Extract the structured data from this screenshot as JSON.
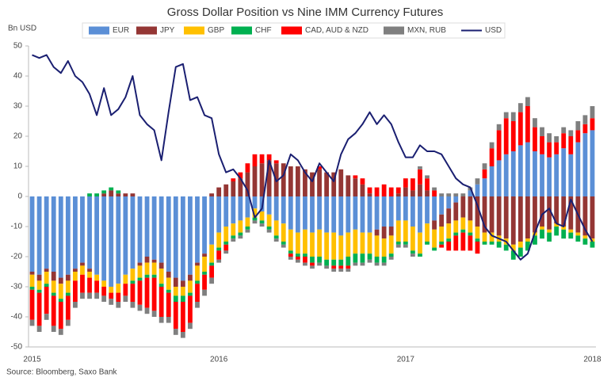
{
  "chart_data": {
    "type": "bar",
    "stacked": true,
    "title": "Gross Dollar Position vs Nine IMM Currency Futures",
    "y_label": "Bn USD",
    "source": "Source: Bloomberg, Saxo Bank",
    "categories": [
      "2015",
      null,
      null,
      null,
      null,
      null,
      null,
      null,
      null,
      null,
      null,
      null,
      null,
      null,
      null,
      null,
      null,
      null,
      null,
      null,
      null,
      null,
      null,
      null,
      null,
      null,
      "2016",
      null,
      null,
      null,
      null,
      null,
      null,
      null,
      null,
      null,
      null,
      null,
      null,
      null,
      null,
      null,
      null,
      null,
      null,
      null,
      null,
      null,
      null,
      null,
      null,
      null,
      "2017",
      null,
      null,
      null,
      null,
      null,
      null,
      null,
      null,
      null,
      null,
      null,
      null,
      null,
      null,
      null,
      null,
      null,
      null,
      null,
      null,
      null,
      null,
      null,
      null,
      null,
      "2018"
    ],
    "ylim": [
      -50,
      50
    ],
    "yticks": [
      -50,
      -40,
      -30,
      -20,
      -10,
      0,
      10,
      20,
      30,
      40,
      50
    ],
    "grid": false,
    "legend": "top",
    "series": [
      {
        "name": "EUR",
        "color": "#5b8fd6",
        "values": [
          -25,
          -26,
          -24,
          -25,
          -27,
          -26,
          -24,
          -22,
          -24,
          -26,
          -28,
          -30,
          -29,
          -26,
          -24,
          -22,
          -20,
          -21,
          -22,
          -25,
          -27,
          -28,
          -26,
          -22,
          -19,
          -16,
          -12,
          -10,
          -9,
          -8,
          -7,
          -4,
          -5,
          -6,
          -8,
          -9,
          -11,
          -12,
          -11,
          -12,
          -11,
          -12,
          -12,
          -13,
          -12,
          -11,
          -12,
          -12,
          -11,
          -10,
          -10,
          -8,
          -8,
          -10,
          -12,
          -9,
          -8,
          -6,
          -4,
          -2,
          0,
          2,
          4,
          6,
          10,
          12,
          14,
          15,
          17,
          18,
          15,
          14,
          13,
          14,
          16,
          14,
          18,
          21,
          22
        ]
      },
      {
        "name": "JPY",
        "color": "#943634",
        "values": [
          -1,
          -2,
          -1,
          -3,
          -2,
          -2,
          -1,
          -1,
          -1,
          0,
          1,
          2,
          1,
          1,
          1,
          -1,
          -2,
          -1,
          -2,
          -2,
          -3,
          -2,
          -2,
          -1,
          -1,
          1,
          3,
          4,
          5,
          6,
          8,
          10,
          11,
          12,
          11,
          11,
          10,
          10,
          9,
          8,
          9,
          8,
          8,
          9,
          7,
          6,
          4,
          1,
          -2,
          -4,
          -3,
          1,
          3,
          2,
          4,
          2,
          -3,
          -4,
          -5,
          -6,
          -7,
          -8,
          -10,
          -12,
          -12,
          -13,
          -14,
          -16,
          -15,
          -14,
          -12,
          -10,
          -11,
          -9,
          -10,
          -11,
          -12,
          -13,
          -14
        ]
      },
      {
        "name": "GBP",
        "color": "#ffc000",
        "values": [
          -4,
          -3,
          -4,
          -4,
          -5,
          -4,
          -3,
          -3,
          -2,
          -2,
          -2,
          -2,
          -3,
          -3,
          -4,
          -4,
          -4,
          -4,
          -5,
          -4,
          -3,
          -3,
          -4,
          -5,
          -5,
          -6,
          -5,
          -5,
          -4,
          -4,
          -3,
          -3,
          -3,
          -4,
          -5,
          -6,
          -7,
          -7,
          -8,
          -8,
          -9,
          -9,
          -9,
          -8,
          -8,
          -8,
          -7,
          -7,
          -7,
          -6,
          -6,
          -7,
          -7,
          -8,
          -7,
          -6,
          -6,
          -5,
          -5,
          -4,
          -4,
          -4,
          -4,
          -3,
          -3,
          -2,
          -2,
          -2,
          -2,
          -1,
          -1,
          -1,
          -1,
          -1,
          -1,
          -1,
          -1,
          -1,
          -1
        ]
      },
      {
        "name": "CHF",
        "color": "#00b050",
        "values": [
          -1,
          -1,
          -1,
          -1,
          -1,
          -1,
          0,
          0,
          1,
          1,
          1,
          1,
          1,
          0,
          -1,
          -1,
          -1,
          -1,
          -1,
          -1,
          -2,
          -2,
          -1,
          -1,
          -1,
          -1,
          -1,
          -1,
          -1,
          -1,
          -1,
          -1,
          -1,
          -1,
          -1,
          -1,
          -1,
          -1,
          -1,
          -2,
          -2,
          -2,
          -2,
          -2,
          -3,
          -3,
          -3,
          -2,
          -2,
          -2,
          -1,
          -1,
          -1,
          -1,
          -1,
          -1,
          -1,
          -1,
          -1,
          -1,
          -1,
          -1,
          -1,
          -1,
          -1,
          -2,
          -2,
          -3,
          -3,
          -3,
          -3,
          -3,
          -3,
          -3,
          -3,
          -2,
          -2,
          -2,
          -2
        ]
      },
      {
        "name": "CAD, AUD & NZD",
        "color": "#ff0000",
        "values": [
          -10,
          -11,
          -9,
          -10,
          -9,
          -8,
          -7,
          -6,
          -5,
          -4,
          -3,
          -2,
          -3,
          -4,
          -6,
          -8,
          -10,
          -11,
          -10,
          -8,
          -9,
          -10,
          -9,
          -6,
          -5,
          -4,
          -3,
          -2,
          1,
          2,
          3,
          4,
          3,
          2,
          1,
          0,
          -1,
          -1,
          -2,
          -1,
          1,
          0,
          -1,
          -1,
          -1,
          1,
          2,
          2,
          3,
          4,
          3,
          2,
          3,
          4,
          5,
          4,
          2,
          -1,
          -3,
          -5,
          -6,
          -5,
          -4,
          3,
          6,
          10,
          12,
          10,
          11,
          12,
          8,
          6,
          5,
          4,
          5,
          6,
          4,
          3,
          4
        ]
      },
      {
        "name": "MXN, RUB",
        "color": "#7f7f7f",
        "values": [
          -2,
          -2,
          -2,
          -2,
          -2,
          -2,
          -2,
          -2,
          -2,
          -2,
          -2,
          -2,
          -2,
          -2,
          -2,
          -2,
          -2,
          -2,
          -2,
          -2,
          -2,
          -2,
          -2,
          -2,
          -2,
          -2,
          -1,
          -1,
          -1,
          -1,
          -1,
          -1,
          -1,
          -1,
          -1,
          -1,
          -1,
          -1,
          -1,
          -1,
          -1,
          -1,
          -1,
          -1,
          -1,
          -1,
          -1,
          -1,
          -1,
          -1,
          -1,
          -1,
          -1,
          -1,
          1,
          1,
          1,
          1,
          1,
          1,
          1,
          1,
          2,
          2,
          2,
          2,
          2,
          3,
          3,
          3,
          3,
          3,
          3,
          2,
          2,
          2,
          3,
          3,
          4
        ]
      },
      {
        "name": "USD",
        "type": "line",
        "color": "#1a1f71",
        "values": [
          47,
          46,
          47,
          43,
          41,
          45,
          40,
          38,
          34,
          27,
          36,
          27,
          29,
          33,
          40,
          27,
          24,
          22,
          12,
          28,
          43,
          44,
          32,
          33,
          27,
          26,
          14,
          8,
          9,
          6,
          2,
          -7,
          -4,
          12,
          5,
          7,
          14,
          12,
          8,
          5,
          11,
          8,
          5,
          14,
          19,
          21,
          24,
          28,
          24,
          27,
          24,
          18,
          13,
          13,
          17,
          15,
          15,
          14,
          10,
          6,
          4,
          3,
          -3,
          -10,
          -13,
          -14,
          -15,
          -18,
          -21,
          -19,
          -12,
          -6,
          -4,
          -9,
          -10,
          -1,
          -6,
          -11,
          -15
        ]
      }
    ]
  }
}
